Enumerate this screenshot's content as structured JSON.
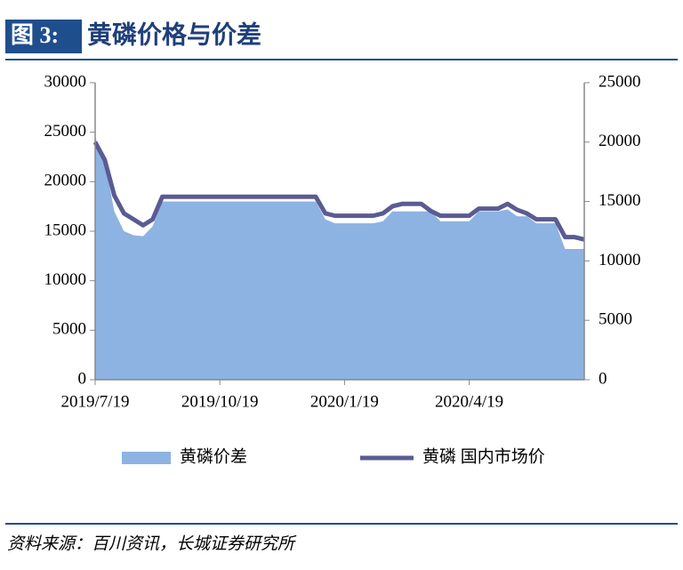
{
  "header": {
    "label": "图 3:"
  },
  "chart_data": {
    "type": "area-line",
    "title": "黄磷价格与价差",
    "source": "资料来源：百川资讯，长城证券研究所",
    "categories": [
      "2019/7/19",
      null,
      null,
      null,
      null,
      null,
      null,
      null,
      null,
      null,
      null,
      null,
      null,
      "2019/10/19",
      null,
      null,
      null,
      null,
      null,
      null,
      null,
      null,
      null,
      null,
      null,
      null,
      "2020/1/19",
      null,
      null,
      null,
      null,
      null,
      null,
      null,
      null,
      null,
      null,
      null,
      null,
      "2020/4/19",
      null,
      null,
      null,
      null,
      null,
      null,
      null,
      null,
      null,
      null,
      null,
      null
    ],
    "series": [
      {
        "name": "黄磷价差",
        "kind": "area",
        "axis": "y",
        "color": "#8db3e2",
        "values": [
          24500,
          22000,
          17000,
          15000,
          14600,
          14500,
          15500,
          18000,
          18000,
          18000,
          18000,
          18000,
          18000,
          18000,
          18000,
          18000,
          18000,
          18000,
          18000,
          18000,
          18000,
          18000,
          18000,
          18000,
          16200,
          15800,
          15800,
          15800,
          15800,
          15800,
          16000,
          17000,
          17000,
          17000,
          17000,
          17000,
          16000,
          16000,
          16000,
          16000,
          17000,
          17000,
          17000,
          17200,
          16500,
          16500,
          15800,
          15800,
          15800,
          13200,
          13200,
          13200
        ]
      },
      {
        "name": "黄磷 国内市场价",
        "kind": "line",
        "axis": "y2",
        "color": "#5b5b93",
        "values": [
          20000,
          18500,
          15500,
          14000,
          13500,
          13000,
          13500,
          15400,
          15400,
          15400,
          15400,
          15400,
          15400,
          15400,
          15400,
          15400,
          15400,
          15400,
          15400,
          15400,
          15400,
          15400,
          15400,
          15400,
          14000,
          13800,
          13800,
          13800,
          13800,
          13800,
          14000,
          14600,
          14800,
          14800,
          14800,
          14200,
          13800,
          13800,
          13800,
          13800,
          14400,
          14400,
          14400,
          14800,
          14300,
          14000,
          13500,
          13500,
          13500,
          12000,
          12000,
          11800
        ]
      }
    ],
    "ylim": [
      0,
      30000
    ],
    "yticks": [
      0,
      5000,
      10000,
      15000,
      20000,
      25000,
      30000
    ],
    "y2lim": [
      0,
      25000
    ],
    "y2ticks": [
      0,
      5000,
      10000,
      15000,
      20000,
      25000
    ],
    "legend": "bottom"
  }
}
